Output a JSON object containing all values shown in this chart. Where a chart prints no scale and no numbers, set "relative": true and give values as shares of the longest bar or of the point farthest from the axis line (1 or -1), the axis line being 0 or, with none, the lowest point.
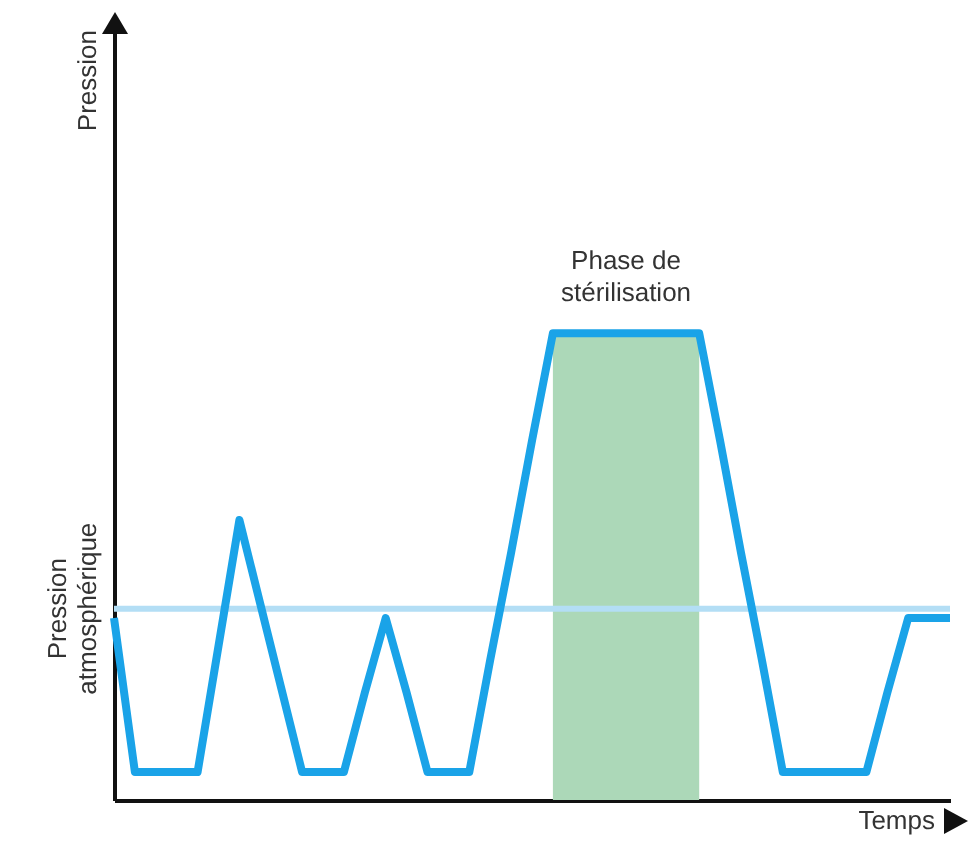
{
  "chart_data": {
    "type": "line",
    "relative": true,
    "xlabel": "Temps",
    "marker": "none",
    "line_style": "solid",
    "categories": [
      null,
      null,
      null,
      null,
      null,
      null,
      null,
      null,
      null,
      null,
      null,
      null,
      null,
      null,
      null,
      null,
      null,
      null,
      null,
      null,
      null,
      null,
      null,
      null,
      null,
      null,
      null,
      null,
      null,
      null,
      null,
      null,
      null,
      null,
      null,
      null,
      null,
      null,
      null,
      null,
      null
    ],
    "series": [
      {
        "type": "area",
        "color": "#acd8b8",
        "values": [
          null,
          null,
          null,
          null,
          null,
          null,
          null,
          null,
          null,
          null,
          null,
          null,
          null,
          null,
          null,
          null,
          null,
          null,
          null,
          null,
          null,
          1,
          1,
          1,
          1,
          1,
          1,
          1,
          1,
          null,
          null,
          null,
          null,
          null,
          null,
          null,
          null,
          null,
          null,
          null,
          null
        ]
      },
      {
        "color": "#1aa3e8",
        "values": [
          0.39,
          0.06,
          0.06,
          0.06,
          0.06,
          0.33,
          0.6,
          0.42,
          0.24,
          0.06,
          0.06,
          0.06,
          0.23,
          0.39,
          0.23,
          0.06,
          0.06,
          0.06,
          0.3,
          0.53,
          0.77,
          1,
          1,
          1,
          1,
          1,
          1,
          1,
          1,
          0.77,
          0.53,
          0.3,
          0.06,
          0.06,
          0.06,
          0.06,
          0.06,
          0.23,
          0.39,
          0.39,
          0.39
        ]
      }
    ],
    "ref_lines": [
      {
        "axis": "y",
        "value": 0.41,
        "label": "Pression atmosphérique",
        "color": "#b3def5"
      }
    ],
    "annotations": [
      "Pression",
      "Phase de stérilisation"
    ]
  }
}
